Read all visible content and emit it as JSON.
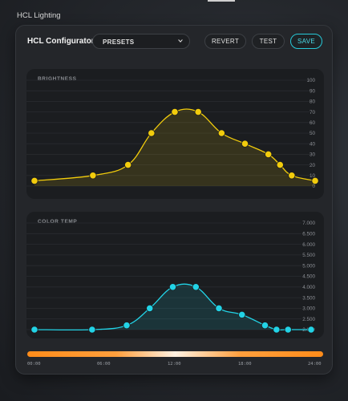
{
  "window": {
    "title": "HCL Lighting"
  },
  "header": {
    "title": "HCL Configurator",
    "presets": {
      "selected": "PRESETS"
    },
    "revert_label": "REVERT",
    "test_label": "TEST",
    "save_label": "SAVE"
  },
  "colors": {
    "accent": "#27c9d8",
    "brightness": "#f2cc0c",
    "color_temp": "#22d3e6",
    "card_bg": "#24262a",
    "panel_bg": "#1b1d20"
  },
  "time_axis": {
    "labels": [
      "00:00",
      "06:00",
      "12:00",
      "18:00",
      "24:00"
    ]
  },
  "chart_data": [
    {
      "type": "line",
      "title": "BRIGHTNESS",
      "ylim": [
        0,
        100
      ],
      "yticks": [
        "100",
        "90",
        "80",
        "70",
        "60",
        "50",
        "40",
        "30",
        "20",
        "10",
        "0"
      ],
      "xlim": [
        0,
        24
      ],
      "series": [
        {
          "x": [
            0,
            5,
            8,
            10,
            12,
            14,
            16,
            18,
            20,
            21,
            22,
            24
          ],
          "y": [
            5,
            10,
            20,
            50,
            70,
            70,
            50,
            40,
            30,
            20,
            10,
            5
          ]
        }
      ]
    },
    {
      "type": "line",
      "title": "COLOR TEMP",
      "ylim": [
        2000,
        7000
      ],
      "yticks": [
        "7.000",
        "6.500",
        "6.000",
        "5.500",
        "5.000",
        "4.500",
        "4.000",
        "3.500",
        "3.000",
        "2.500",
        "2.000"
      ],
      "xlim": [
        0,
        24
      ],
      "series": [
        {
          "x": [
            0,
            5,
            8,
            10,
            12,
            14,
            16,
            18,
            20,
            21,
            22,
            24
          ],
          "y": [
            2000,
            2000,
            2200,
            3000,
            4000,
            4000,
            3000,
            2700,
            2200,
            2000,
            2000,
            2000
          ]
        }
      ]
    }
  ]
}
